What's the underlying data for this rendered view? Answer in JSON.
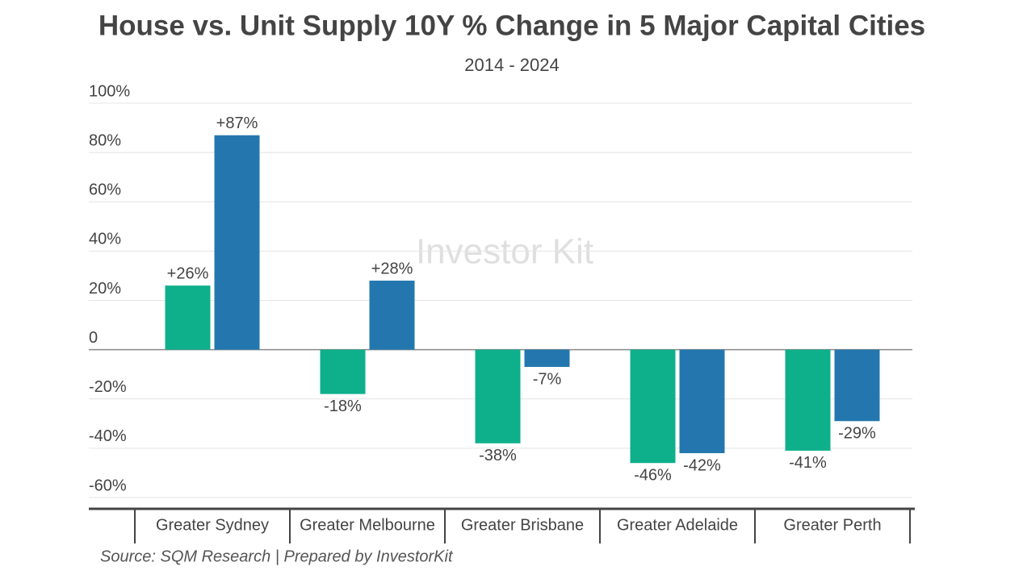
{
  "chart_data": {
    "type": "bar",
    "title": "House vs. Unit Supply 10Y % Change in 5 Major Capital Cities",
    "subtitle": "2014 - 2024",
    "source": "Source: SQM Research | Prepared by InvestorKit",
    "watermark": "Investor Kit",
    "categories": [
      "Greater Sydney",
      "Greater Melbourne",
      "Greater Brisbane",
      "Greater Adelaide",
      "Greater Perth"
    ],
    "series": [
      {
        "color": "#0db08b",
        "values": [
          26,
          -18,
          -38,
          -46,
          -41
        ],
        "value_labels": [
          "+26%",
          "-18%",
          "-38%",
          "-46%",
          "-41%"
        ]
      },
      {
        "color": "#2377ae",
        "values": [
          87,
          28,
          -7,
          -42,
          -29
        ],
        "value_labels": [
          "+87%",
          "+28%",
          "-7%",
          "-42%",
          "-29%"
        ]
      }
    ],
    "ylim": [
      -60,
      100
    ],
    "yticks": [
      {
        "value": -60,
        "label": "-60%"
      },
      {
        "value": -40,
        "label": "-40%"
      },
      {
        "value": -20,
        "label": "-20%"
      },
      0,
      {
        "value": 20,
        "label": "20%"
      },
      {
        "value": 40,
        "label": "40%"
      },
      {
        "value": 60,
        "label": "60%"
      },
      {
        "value": 80,
        "label": "80%"
      },
      {
        "value": 100,
        "label": "100%"
      }
    ],
    "grid": true
  }
}
